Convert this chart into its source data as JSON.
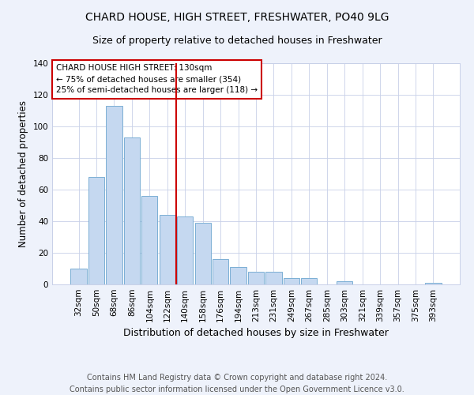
{
  "title": "CHARD HOUSE, HIGH STREET, FRESHWATER, PO40 9LG",
  "subtitle": "Size of property relative to detached houses in Freshwater",
  "xlabel": "Distribution of detached houses by size in Freshwater",
  "ylabel": "Number of detached properties",
  "categories": [
    "32sqm",
    "50sqm",
    "68sqm",
    "86sqm",
    "104sqm",
    "122sqm",
    "140sqm",
    "158sqm",
    "176sqm",
    "194sqm",
    "213sqm",
    "231sqm",
    "249sqm",
    "267sqm",
    "285sqm",
    "303sqm",
    "321sqm",
    "339sqm",
    "357sqm",
    "375sqm",
    "393sqm"
  ],
  "values": [
    10,
    68,
    113,
    93,
    56,
    44,
    43,
    39,
    16,
    11,
    8,
    8,
    4,
    4,
    0,
    2,
    0,
    0,
    0,
    0,
    1
  ],
  "bar_color": "#c5d8f0",
  "bar_edge_color": "#7bafd4",
  "vline_label": "CHARD HOUSE HIGH STREET: 130sqm",
  "annotation_line1": "← 75% of detached houses are smaller (354)",
  "annotation_line2": "25% of semi-detached houses are larger (118) →",
  "annotation_box_color": "#cc0000",
  "ylim": [
    0,
    140
  ],
  "yticks": [
    0,
    20,
    40,
    60,
    80,
    100,
    120,
    140
  ],
  "footer1": "Contains HM Land Registry data © Crown copyright and database right 2024.",
  "footer2": "Contains public sector information licensed under the Open Government Licence v3.0.",
  "bg_color": "#eef2fb",
  "plot_bg_color": "#ffffff",
  "grid_color": "#c8d0e8",
  "title_fontsize": 10,
  "subtitle_fontsize": 9,
  "xlabel_fontsize": 9,
  "ylabel_fontsize": 8.5,
  "tick_fontsize": 7.5,
  "footer_fontsize": 7,
  "annot_fontsize": 7.5
}
